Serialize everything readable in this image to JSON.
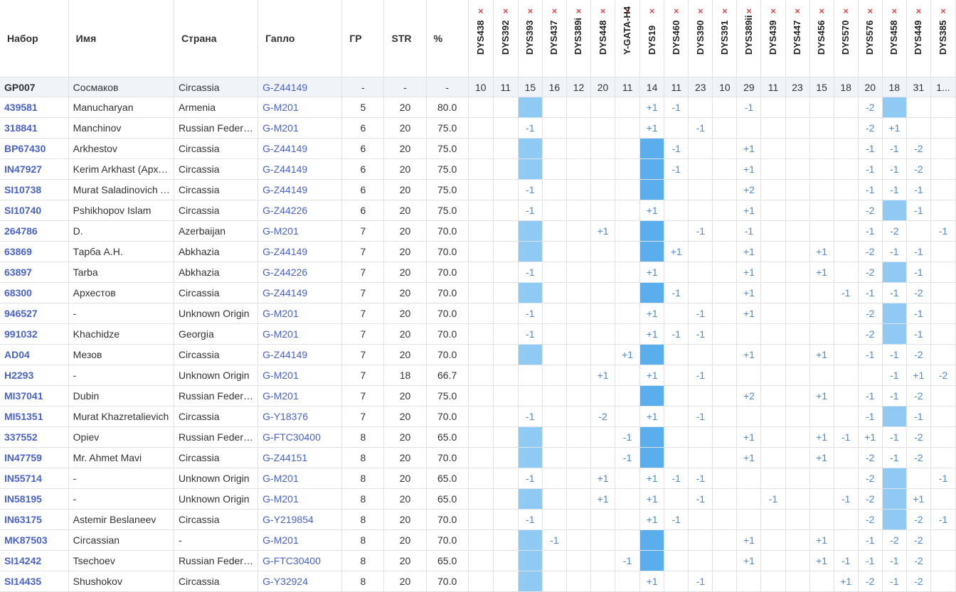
{
  "headers": {
    "kit": "Набор",
    "name": "Имя",
    "country": "Страна",
    "haplo": "Гапло",
    "gd": "ГР",
    "str": "STR",
    "pct": "%"
  },
  "remove_icon": "×",
  "markers": [
    "DYS438",
    "DYS392",
    "DYS393",
    "DYS437",
    "DYS389i",
    "DYS448",
    "Y-GATA-H4",
    "DYS19",
    "DYS460",
    "DYS390",
    "DYS391",
    "DYS389ii",
    "DYS439",
    "DYS447",
    "DYS456",
    "DYS570",
    "DYS576",
    "DYS458",
    "DYS449",
    "DYS385"
  ],
  "reference": {
    "kit": "GP007",
    "name": "Сосмаков",
    "country": "Circassia",
    "haplo": "G-Z44149",
    "gd": "-",
    "str": "-",
    "pct": "-",
    "values": [
      "10",
      "11",
      "15",
      "16",
      "12",
      "20",
      "11",
      "14",
      "11",
      "23",
      "10",
      "29",
      "11",
      "23",
      "15",
      "18",
      "20",
      "18",
      "31",
      "1..."
    ]
  },
  "rows": [
    {
      "kit": "439581",
      "name": "Manucharyan",
      "country": "Armenia",
      "haplo": "G-M201",
      "gd": "5",
      "str": "20",
      "pct": "80.0",
      "values": [
        "",
        "",
        "",
        "",
        "",
        "",
        "",
        "+1",
        "-1",
        "",
        "",
        "-1",
        "",
        "",
        "",
        "",
        "-2",
        "",
        "",
        ""
      ],
      "hl": {
        "2": 1,
        "17": 1
      }
    },
    {
      "kit": "318841",
      "name": "Manchinov",
      "country": "Russian Federation",
      "haplo": "G-M201",
      "gd": "6",
      "str": "20",
      "pct": "75.0",
      "values": [
        "",
        "",
        "-1",
        "",
        "",
        "",
        "",
        "+1",
        "",
        "-1",
        "",
        "",
        "",
        "",
        "",
        "",
        "-2",
        "+1",
        "",
        ""
      ],
      "hl": {}
    },
    {
      "kit": "BP67430",
      "name": "Arkhestov",
      "country": "Circassia",
      "haplo": "G-Z44149",
      "gd": "6",
      "str": "20",
      "pct": "75.0",
      "values": [
        "",
        "",
        "",
        "",
        "",
        "",
        "",
        "",
        "-1",
        "",
        "",
        "+1",
        "",
        "",
        "",
        "",
        "-1",
        "-1",
        "-2",
        ""
      ],
      "hl": {
        "2": 1,
        "7": 2
      }
    },
    {
      "kit": "IN47927",
      "name": "Kerim Arkhast (Архестов)",
      "country": "Circassia",
      "haplo": "G-Z44149",
      "gd": "6",
      "str": "20",
      "pct": "75.0",
      "values": [
        "",
        "",
        "",
        "",
        "",
        "",
        "",
        "",
        "-1",
        "",
        "",
        "+1",
        "",
        "",
        "",
        "",
        "-1",
        "-1",
        "-2",
        ""
      ],
      "hl": {
        "2": 1,
        "7": 2
      }
    },
    {
      "kit": "SI10738",
      "name": "Murat Saladinovich Arkhestov",
      "country": "Circassia",
      "haplo": "G-Z44149",
      "gd": "6",
      "str": "20",
      "pct": "75.0",
      "values": [
        "",
        "",
        "-1",
        "",
        "",
        "",
        "",
        "",
        "",
        "",
        "",
        "+2",
        "",
        "",
        "",
        "",
        "-1",
        "-1",
        "-1",
        ""
      ],
      "hl": {
        "7": 2
      }
    },
    {
      "kit": "SI10740",
      "name": "Pshikhopov Islam",
      "country": "Circassia",
      "haplo": "G-Z44226",
      "gd": "6",
      "str": "20",
      "pct": "75.0",
      "values": [
        "",
        "",
        "-1",
        "",
        "",
        "",
        "",
        "+1",
        "",
        "",
        "",
        "+1",
        "",
        "",
        "",
        "",
        "-2",
        "",
        "-1",
        ""
      ],
      "hl": {
        "17": 1
      }
    },
    {
      "kit": "264786",
      "name": "D.",
      "country": "Azerbaijan",
      "haplo": "G-M201",
      "gd": "7",
      "str": "20",
      "pct": "70.0",
      "values": [
        "",
        "",
        "",
        "",
        "",
        "+1",
        "",
        "",
        "",
        "-1",
        "",
        "-1",
        "",
        "",
        "",
        "",
        "-1",
        "-2",
        "",
        "-1"
      ],
      "hl": {
        "2": 1,
        "7": 2
      }
    },
    {
      "kit": "63869",
      "name": "Тарба А.Н.",
      "country": "Abkhazia",
      "haplo": "G-Z44149",
      "gd": "7",
      "str": "20",
      "pct": "70.0",
      "values": [
        "",
        "",
        "",
        "",
        "",
        "",
        "",
        "",
        "+1",
        "",
        "",
        "+1",
        "",
        "",
        "+1",
        "",
        "-2",
        "-1",
        "-1",
        ""
      ],
      "hl": {
        "2": 1,
        "7": 2
      }
    },
    {
      "kit": "63897",
      "name": "Tarba",
      "country": "Abkhazia",
      "haplo": "G-Z44226",
      "gd": "7",
      "str": "20",
      "pct": "70.0",
      "values": [
        "",
        "",
        "-1",
        "",
        "",
        "",
        "",
        "+1",
        "",
        "",
        "",
        "+1",
        "",
        "",
        "+1",
        "",
        "-2",
        "",
        "-1",
        ""
      ],
      "hl": {
        "17": 1
      }
    },
    {
      "kit": "68300",
      "name": "Архестов",
      "country": "Circassia",
      "haplo": "G-Z44149",
      "gd": "7",
      "str": "20",
      "pct": "70.0",
      "values": [
        "",
        "",
        "",
        "",
        "",
        "",
        "",
        "",
        "-1",
        "",
        "",
        "+1",
        "",
        "",
        "",
        "-1",
        "-1",
        "-1",
        "-2",
        ""
      ],
      "hl": {
        "2": 1,
        "7": 2
      }
    },
    {
      "kit": "946527",
      "name": "-",
      "country": "Unknown Origin",
      "haplo": "G-M201",
      "gd": "7",
      "str": "20",
      "pct": "70.0",
      "values": [
        "",
        "",
        "-1",
        "",
        "",
        "",
        "",
        "+1",
        "",
        "-1",
        "",
        "+1",
        "",
        "",
        "",
        "",
        "-2",
        "",
        "-1",
        ""
      ],
      "hl": {
        "17": 1
      }
    },
    {
      "kit": "991032",
      "name": "Khachidze",
      "country": "Georgia",
      "haplo": "G-M201",
      "gd": "7",
      "str": "20",
      "pct": "70.0",
      "values": [
        "",
        "",
        "-1",
        "",
        "",
        "",
        "",
        "+1",
        "-1",
        "-1",
        "",
        "",
        "",
        "",
        "",
        "",
        "-2",
        "",
        "-1",
        ""
      ],
      "hl": {
        "17": 1
      }
    },
    {
      "kit": "AD04",
      "name": "Мезов",
      "country": "Circassia",
      "haplo": "G-Z44149",
      "gd": "7",
      "str": "20",
      "pct": "70.0",
      "values": [
        "",
        "",
        "",
        "",
        "",
        "",
        "+1",
        "",
        "",
        "",
        "",
        "+1",
        "",
        "",
        "+1",
        "",
        "-1",
        "-1",
        "-2",
        ""
      ],
      "hl": {
        "2": 1,
        "7": 2
      }
    },
    {
      "kit": "H2293",
      "name": "-",
      "country": "Unknown Origin",
      "haplo": "G-M201",
      "gd": "7",
      "str": "18",
      "pct": "66.7",
      "values": [
        "",
        "",
        "",
        "",
        "",
        "+1",
        "",
        "+1",
        "",
        "-1",
        "",
        "",
        "",
        "",
        "",
        "",
        "",
        "-1",
        "+1",
        "-2"
      ],
      "hl": {}
    },
    {
      "kit": "MI37041",
      "name": "Dubin",
      "country": "Russian Federation",
      "haplo": "G-M201",
      "gd": "7",
      "str": "20",
      "pct": "75.0",
      "values": [
        "",
        "",
        "",
        "",
        "",
        "",
        "",
        "",
        "",
        "",
        "",
        "+2",
        "",
        "",
        "+1",
        "",
        "-1",
        "-1",
        "-2",
        ""
      ],
      "hl": {
        "7": 2
      }
    },
    {
      "kit": "MI51351",
      "name": "Murat Khazretalievich",
      "country": "Circassia",
      "haplo": "G-Y18376",
      "gd": "7",
      "str": "20",
      "pct": "70.0",
      "values": [
        "",
        "",
        "-1",
        "",
        "",
        "-2",
        "",
        "+1",
        "",
        "-1",
        "",
        "",
        "",
        "",
        "",
        "",
        "-1",
        "",
        "-1",
        ""
      ],
      "hl": {
        "17": 1
      }
    },
    {
      "kit": "337552",
      "name": "Opiev",
      "country": "Russian Federation",
      "haplo": "G-FTC30400",
      "gd": "8",
      "str": "20",
      "pct": "65.0",
      "values": [
        "",
        "",
        "",
        "",
        "",
        "",
        "-1",
        "",
        "",
        "",
        "",
        "+1",
        "",
        "",
        "+1",
        "-1",
        "+1",
        "-1",
        "-2",
        ""
      ],
      "hl": {
        "2": 1,
        "7": 2
      }
    },
    {
      "kit": "IN47759",
      "name": "Mr. Ahmet Mavi",
      "country": "Circassia",
      "haplo": "G-Z44151",
      "gd": "8",
      "str": "20",
      "pct": "70.0",
      "values": [
        "",
        "",
        "",
        "",
        "",
        "",
        "-1",
        "",
        "",
        "",
        "",
        "+1",
        "",
        "",
        "+1",
        "",
        "-2",
        "-1",
        "-2",
        ""
      ],
      "hl": {
        "2": 1,
        "7": 2
      }
    },
    {
      "kit": "IN55714",
      "name": "-",
      "country": "Unknown Origin",
      "haplo": "G-M201",
      "gd": "8",
      "str": "20",
      "pct": "65.0",
      "values": [
        "",
        "",
        "-1",
        "",
        "",
        "+1",
        "",
        "+1",
        "-1",
        "-1",
        "",
        "",
        "",
        "",
        "",
        "",
        "-2",
        "",
        "",
        "-1"
      ],
      "hl": {
        "17": 1
      }
    },
    {
      "kit": "IN58195",
      "name": "-",
      "country": "Unknown Origin",
      "haplo": "G-M201",
      "gd": "8",
      "str": "20",
      "pct": "65.0",
      "values": [
        "",
        "",
        "",
        "",
        "",
        "+1",
        "",
        "+1",
        "",
        "-1",
        "",
        "",
        "-1",
        "",
        "",
        "-1",
        "-2",
        "",
        "+1",
        ""
      ],
      "hl": {
        "2": 1,
        "17": 1
      }
    },
    {
      "kit": "IN63175",
      "name": "Astemir Beslaneev",
      "country": "Circassia",
      "haplo": "G-Y219854",
      "gd": "8",
      "str": "20",
      "pct": "70.0",
      "values": [
        "",
        "",
        "-1",
        "",
        "",
        "",
        "",
        "+1",
        "-1",
        "",
        "",
        "",
        "",
        "",
        "",
        "",
        "-2",
        "",
        "-2",
        "-1"
      ],
      "hl": {
        "17": 1
      }
    },
    {
      "kit": "MK87503",
      "name": "Circassian",
      "country": "-",
      "haplo": "G-M201",
      "gd": "8",
      "str": "20",
      "pct": "70.0",
      "values": [
        "",
        "",
        "",
        "-1",
        "",
        "",
        "",
        "",
        "",
        "",
        "",
        "+1",
        "",
        "",
        "+1",
        "",
        "-1",
        "-2",
        "-2",
        ""
      ],
      "hl": {
        "2": 1,
        "7": 2
      }
    },
    {
      "kit": "SI14242",
      "name": "Tsechoev",
      "country": "Russian Federation",
      "haplo": "G-FTC30400",
      "gd": "8",
      "str": "20",
      "pct": "65.0",
      "values": [
        "",
        "",
        "",
        "",
        "",
        "",
        "-1",
        "",
        "",
        "",
        "",
        "+1",
        "",
        "",
        "+1",
        "-1",
        "-1",
        "-1",
        "-2",
        ""
      ],
      "hl": {
        "2": 1,
        "7": 2
      }
    },
    {
      "kit": "SI14435",
      "name": "Shushokov",
      "country": "Circassia",
      "haplo": "G-Y32924",
      "gd": "8",
      "str": "20",
      "pct": "70.0",
      "values": [
        "",
        "",
        "",
        "",
        "",
        "",
        "",
        "+1",
        "",
        "-1",
        "",
        "",
        "",
        "",
        "",
        "+1",
        "-2",
        "-1",
        "-2",
        ""
      ],
      "hl": {
        "2": 1
      }
    }
  ]
}
